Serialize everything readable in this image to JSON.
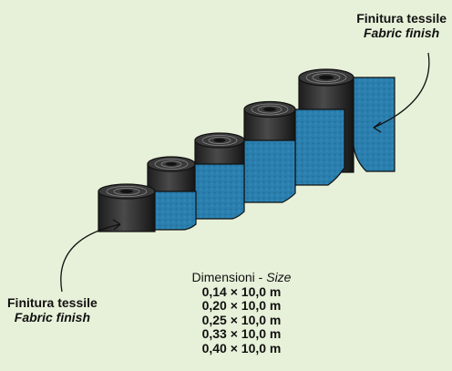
{
  "callouts": {
    "top": {
      "line1": "Finitura tessile",
      "line2": "Fabric finish"
    },
    "bottom": {
      "line1": "Finitura tessile",
      "line2": "Fabric finish"
    }
  },
  "dimensions": {
    "heading": "Dimensioni - ",
    "heading_en": "Size",
    "sizes": [
      "0,14 × 10,0 m",
      "0,20 × 10,0 m",
      "0,25 × 10,0 m",
      "0,33 × 10,0 m",
      "0,40 × 10,0 m"
    ]
  },
  "colors": {
    "background": "#e7f1d9",
    "fabric": "#2a7fae",
    "roll": "#2b2b2b"
  }
}
